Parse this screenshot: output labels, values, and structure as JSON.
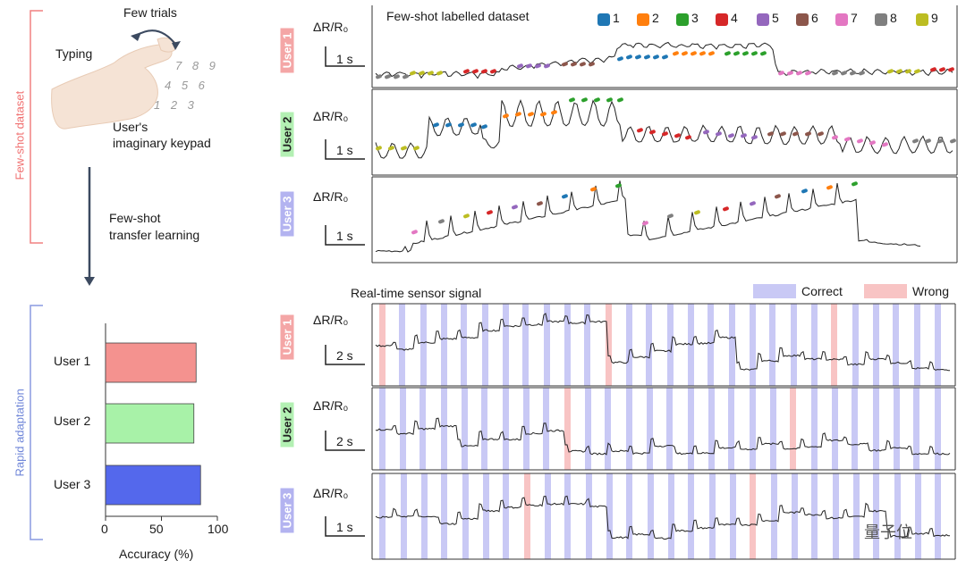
{
  "left": {
    "bracket_top": "Few-shot dataset",
    "bracket_bottom": "Rapid adaptation",
    "illus": {
      "few_trials": "Few trials",
      "typing": "Typing",
      "keypad_line1": "User's",
      "keypad_line2": "imaginary keypad",
      "keys_row1": "7 8 9",
      "keys_row2": "4 5 6",
      "keys_row3": "1 2 3"
    },
    "transfer_line1": "Few-shot",
    "transfer_line2": "transfer learning"
  },
  "chart_data": {
    "type": "bar",
    "orientation": "horizontal",
    "categories": [
      "User 1",
      "User 2",
      "User 3"
    ],
    "values": [
      81,
      79,
      85
    ],
    "xlabel": "Accuracy (%)",
    "xlim": [
      0,
      100
    ],
    "xticks": [
      "0",
      "50",
      "100"
    ],
    "colors": [
      "#f4928f",
      "#a8f2a8",
      "#5468ec"
    ]
  },
  "top_panel": {
    "title": "Few-shot labelled dataset",
    "legend": [
      "1",
      "2",
      "3",
      "4",
      "5",
      "6",
      "7",
      "8",
      "9"
    ],
    "legend_colors": [
      "#1f77b4",
      "#ff7f0e",
      "#2ca02c",
      "#d62728",
      "#9467bd",
      "#8c564b",
      "#e377c2",
      "#7f7f7f",
      "#bcbd22"
    ],
    "ylabel": "ΔR/R₀",
    "scale": "1 s",
    "users": [
      {
        "label": "User 1",
        "color": "#f4a6a6"
      },
      {
        "label": "User 2",
        "color": "#b3f0b3"
      },
      {
        "label": "User 3",
        "color": "#b3b3f0"
      }
    ]
  },
  "bottom_panel": {
    "title": "Real-time sensor signal",
    "legend_correct": "Correct",
    "legend_wrong": "Wrong",
    "correct_color": "#c9c9f5",
    "wrong_color": "#f8c4c4",
    "ylabel": "ΔR/R₀",
    "users": [
      {
        "label": "User 1",
        "color": "#f4a6a6",
        "scale": "2 s"
      },
      {
        "label": "User 2",
        "color": "#b3f0b3",
        "scale": "2 s"
      },
      {
        "label": "User 3",
        "color": "#b3b3f0",
        "scale": "1 s"
      }
    ]
  },
  "watermark": "量子位"
}
